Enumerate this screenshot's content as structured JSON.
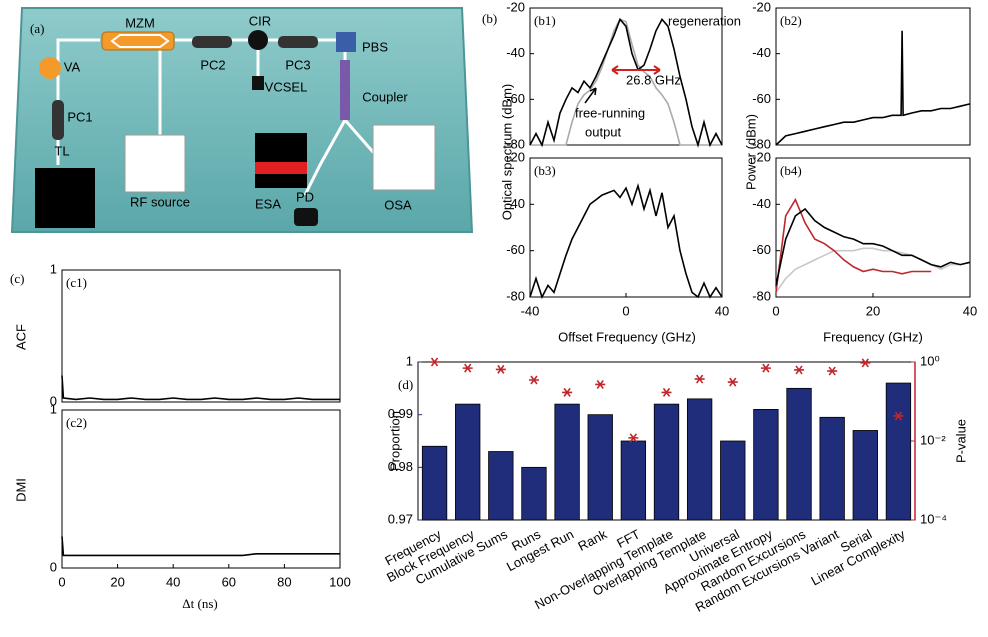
{
  "figure_labels": [
    "(a)",
    "(b)",
    "(c)",
    "(d)"
  ],
  "setup": {
    "labels": [
      "MZM",
      "CIR",
      "PBS",
      "VA",
      "PC1",
      "TL",
      "RF source",
      "PC2",
      "PC3",
      "VCSEL",
      "Coupler",
      "ESA",
      "PD",
      "OSA"
    ]
  },
  "chart_data": [
    {
      "type": "line",
      "panel": "(b1)",
      "ylabel": "Optical spectrum (dBm)",
      "annotations": [
        "regeneration",
        "free-running",
        "output",
        "26.8 GHz"
      ],
      "xlim": [
        -40,
        40
      ],
      "ylim": [
        -80,
        -20
      ],
      "yticks": [
        -80,
        -60,
        -40,
        -20
      ],
      "x": [
        -40,
        -37.5,
        -35,
        -32.5,
        -30,
        -27.5,
        -25,
        -22.5,
        -20,
        -17.5,
        -15,
        -12.5,
        -10,
        -7.5,
        -5,
        -2.5,
        0,
        2.5,
        5,
        7.5,
        10,
        12.5,
        15,
        17.5,
        20,
        22.5,
        25,
        27.5,
        30,
        32.5,
        35,
        37.5,
        40
      ],
      "series": [
        {
          "color": "#aaaaaa",
          "values": [
            -80,
            -80,
            -80,
            -80,
            -80,
            -80,
            -80,
            -70,
            -62,
            -58,
            -56,
            -52,
            -46,
            -38,
            -30,
            -25,
            -26,
            -36,
            -45,
            -48,
            -50,
            -55,
            -58,
            -62,
            -70,
            -80,
            -80,
            -80,
            -80,
            -80,
            -80,
            -80,
            -80
          ]
        },
        {
          "color": "#000000",
          "values": [
            -80,
            -75,
            -80,
            -70,
            -78,
            -66,
            -60,
            -55,
            -57,
            -52,
            -55,
            -50,
            -44,
            -38,
            -32,
            -25,
            -28,
            -40,
            -47,
            -45,
            -38,
            -30,
            -25,
            -28,
            -38,
            -50,
            -60,
            -72,
            -80,
            -70,
            -80,
            -75,
            -80
          ]
        }
      ]
    },
    {
      "type": "line",
      "panel": "(b2)",
      "ylabel": "Power (dBm)",
      "xlim": [
        0,
        40
      ],
      "ylim": [
        -80,
        -20
      ],
      "yticks": [
        -80,
        -60,
        -40,
        -20
      ],
      "x": [
        0,
        2,
        4,
        6,
        8,
        10,
        12,
        14,
        16,
        18,
        20,
        22,
        24,
        25.8,
        26,
        26.2,
        28,
        30,
        32,
        34,
        36,
        38,
        40
      ],
      "series": [
        {
          "color": "#000000",
          "values": [
            -80,
            -76,
            -75,
            -74,
            -73,
            -72,
            -71,
            -70,
            -70,
            -69,
            -68,
            -68,
            -67,
            -67,
            -30,
            -67,
            -66,
            -65,
            -65,
            -64,
            -64,
            -63,
            -62
          ]
        }
      ]
    },
    {
      "type": "line",
      "panel": "(b3)",
      "xlabel": "Offset Frequency (GHz)",
      "xlim": [
        -40,
        40
      ],
      "ylim": [
        -80,
        -20
      ],
      "yticks": [
        -80,
        -60,
        -40,
        -20
      ],
      "xticks": [
        -40,
        0,
        40
      ],
      "x": [
        -40,
        -37.5,
        -35,
        -32.5,
        -30,
        -27.5,
        -25,
        -22.5,
        -20,
        -17.5,
        -15,
        -12.5,
        -10,
        -7.5,
        -5,
        -2.5,
        0,
        2.5,
        5,
        7.5,
        10,
        12.5,
        15,
        17.5,
        20,
        22.5,
        25,
        27.5,
        30,
        32.5,
        35,
        37.5,
        40
      ],
      "series": [
        {
          "color": "#000000",
          "values": [
            -80,
            -72,
            -80,
            -75,
            -78,
            -70,
            -62,
            -55,
            -50,
            -45,
            -40,
            -38,
            -36,
            -35,
            -34,
            -37,
            -33,
            -40,
            -32,
            -42,
            -34,
            -45,
            -35,
            -50,
            -45,
            -60,
            -70,
            -78,
            -80,
            -74,
            -80,
            -76,
            -80
          ]
        }
      ]
    },
    {
      "type": "line",
      "panel": "(b4)",
      "xlabel": "Frequency (GHz)",
      "xlim": [
        0,
        40
      ],
      "ylim": [
        -80,
        -20
      ],
      "yticks": [
        -80,
        -60,
        -40,
        -20
      ],
      "xticks": [
        0,
        20,
        40
      ],
      "x": [
        0,
        2,
        4,
        6,
        8,
        10,
        12,
        14,
        16,
        18,
        20,
        22,
        24,
        26,
        28,
        30,
        32,
        34,
        36,
        38,
        40
      ],
      "series": [
        {
          "color": "#c8c8c8",
          "values": [
            -78,
            -72,
            -68,
            -66,
            -64,
            -62,
            -60,
            -60,
            -60,
            -59,
            -59,
            -60,
            -60,
            -61,
            -62,
            -64,
            -66,
            -68,
            -66,
            -66,
            -65
          ]
        },
        {
          "color": "#c0272d",
          "values": [
            -78,
            -45,
            -38,
            -48,
            -55,
            -57,
            -60,
            -64,
            -67,
            -69,
            -68,
            -69,
            -69,
            -70,
            -69,
            -69,
            -69,
            null,
            null,
            null,
            null
          ]
        },
        {
          "color": "#000000",
          "values": [
            -75,
            -55,
            -45,
            -42,
            -47,
            -50,
            -52,
            -54,
            -55,
            -57,
            -57,
            -58,
            -60,
            -62,
            -62,
            -64,
            -66,
            -67,
            -65,
            -66,
            -65
          ]
        }
      ]
    },
    {
      "type": "line",
      "panel": "(c1)",
      "ylabel": "ACF",
      "xlim": [
        0,
        100
      ],
      "ylim": [
        0,
        1
      ],
      "yticks": [
        0,
        1
      ],
      "x": [
        0,
        0.5,
        5,
        10,
        15,
        20,
        25,
        30,
        35,
        40,
        45,
        50,
        55,
        60,
        65,
        70,
        75,
        80,
        85,
        90,
        95,
        100
      ],
      "series": [
        {
          "color": "#000000",
          "values": [
            0.2,
            0.03,
            0.02,
            0.03,
            0.02,
            0.02,
            0.03,
            0.02,
            0.02,
            0.03,
            0.02,
            0.02,
            0.03,
            0.02,
            0.02,
            0.03,
            0.02,
            0.02,
            0.03,
            0.02,
            0.02,
            0.02
          ]
        }
      ]
    },
    {
      "type": "line",
      "panel": "(c2)",
      "ylabel": "DMI",
      "xlabel": "Δt (ns)",
      "xlim": [
        0,
        100
      ],
      "ylim": [
        0,
        1
      ],
      "yticks": [
        0,
        1
      ],
      "xticks": [
        0,
        20,
        40,
        60,
        80,
        100
      ],
      "x": [
        0,
        0.5,
        5,
        10,
        15,
        20,
        25,
        30,
        35,
        40,
        45,
        50,
        55,
        60,
        65,
        70,
        75,
        80,
        85,
        90,
        95,
        100
      ],
      "series": [
        {
          "color": "#000000",
          "values": [
            0.2,
            0.08,
            0.08,
            0.08,
            0.08,
            0.08,
            0.08,
            0.08,
            0.08,
            0.08,
            0.08,
            0.08,
            0.08,
            0.08,
            0.08,
            0.09,
            0.09,
            0.09,
            0.09,
            0.09,
            0.09,
            0.09
          ]
        }
      ]
    },
    {
      "type": "bar",
      "ylabel": "Proportion",
      "y2label": "P-value",
      "y2log": true,
      "categories": [
        "Frequency",
        "Block Frequency",
        "Cumulative Sums",
        "Runs",
        "Longest Run",
        "Rank",
        "FFT",
        "Non-Overlapping Template",
        "Overlapping Template",
        "Universal",
        "Approximate Entropy",
        "Random Excursions",
        "Random Excursions Variant",
        "Serial",
        "Linear Complexity"
      ],
      "ylim": [
        0.97,
        1
      ],
      "yticks": [
        0.97,
        0.98,
        0.99,
        1
      ],
      "y2lim": [
        0.0001,
        1
      ],
      "y2ticks": [
        {
          "value": 0.0001,
          "label": "10⁻⁴"
        },
        {
          "value": 0.01,
          "label": "10⁻²"
        },
        {
          "value": 1,
          "label": "10⁰"
        }
      ],
      "series": [
        {
          "color": "#1f2d7b",
          "values": [
            0.984,
            0.992,
            0.983,
            0.98,
            0.992,
            0.99,
            0.985,
            0.992,
            0.993,
            0.985,
            0.991,
            0.995,
            0.9895,
            0.987,
            0.996
          ]
        },
        {
          "color": "#c0272d",
          "axis": "y2",
          "values": [
            1.0,
            0.7,
            0.65,
            0.35,
            0.17,
            0.27,
            0.012,
            0.17,
            0.37,
            0.31,
            0.7,
            0.63,
            0.59,
            0.95,
            0.043
          ]
        }
      ]
    }
  ]
}
